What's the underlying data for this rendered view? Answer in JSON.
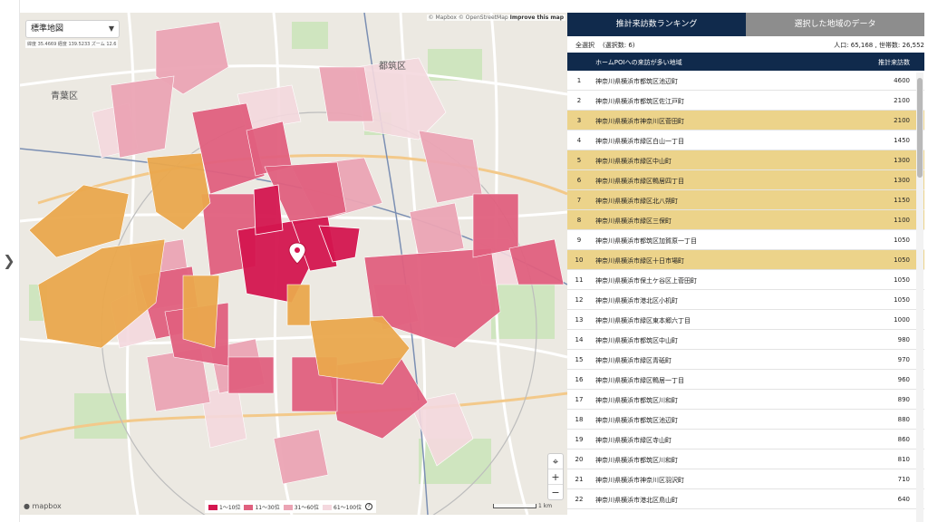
{
  "map": {
    "style_label": "標準地図",
    "coords": "緯度 35.4669  経度 139.5233  ズーム 12.6",
    "attribution": "© Mapbox © OpenStreetMap",
    "improve_label": "Improve this map",
    "logo": "mapbox",
    "scale": "1 km",
    "zoom_in": "+",
    "zoom_out": "−",
    "locate_icon": "crosshair-icon",
    "place_labels": [
      {
        "text": "都筑区",
        "id": "tsuzuki"
      },
      {
        "text": "青葉区",
        "id": "aoba"
      }
    ],
    "legend": [
      {
        "label": "1〜10位",
        "color": "#d4164f"
      },
      {
        "label": "11〜30位",
        "color": "#e0607e"
      },
      {
        "label": "31〜60位",
        "color": "#eba4b4"
      },
      {
        "label": "61〜100位",
        "color": "#f4d8de"
      }
    ],
    "legend_help": "?"
  },
  "panel": {
    "tabs": [
      {
        "label": "推計来訪数ランキング",
        "active": true
      },
      {
        "label": "選択した地域のデータ",
        "active": false
      }
    ],
    "select_all": "全選択",
    "selected_count": "(選択数: 6)",
    "population": "人口: 65,168 , 世帯数: 26,552",
    "col_area": "ホームPOIへの来訪が多い地域",
    "col_visits": "推計来訪数",
    "highlight_color": "#ecd38a",
    "rows": [
      {
        "rank": "1",
        "name": "神奈川県横浜市都筑区池辺町",
        "value": "4600",
        "hl": false
      },
      {
        "rank": "2",
        "name": "神奈川県横浜市都筑区佐江戸町",
        "value": "2100",
        "hl": false
      },
      {
        "rank": "3",
        "name": "神奈川県横浜市神奈川区菅田町",
        "value": "2100",
        "hl": true
      },
      {
        "rank": "4",
        "name": "神奈川県横浜市緑区白山一丁目",
        "value": "1450",
        "hl": false
      },
      {
        "rank": "5",
        "name": "神奈川県横浜市緑区中山町",
        "value": "1300",
        "hl": true
      },
      {
        "rank": "6",
        "name": "神奈川県横浜市緑区鴨居四丁目",
        "value": "1300",
        "hl": true
      },
      {
        "rank": "7",
        "name": "神奈川県横浜市緑区北八朔町",
        "value": "1150",
        "hl": true
      },
      {
        "rank": "8",
        "name": "神奈川県横浜市緑区三保町",
        "value": "1100",
        "hl": true
      },
      {
        "rank": "9",
        "name": "神奈川県横浜市都筑区加賀原一丁目",
        "value": "1050",
        "hl": false
      },
      {
        "rank": "10",
        "name": "神奈川県横浜市緑区十日市場町",
        "value": "1050",
        "hl": true
      },
      {
        "rank": "11",
        "name": "神奈川県横浜市保土ケ谷区上菅田町",
        "value": "1050",
        "hl": false
      },
      {
        "rank": "12",
        "name": "神奈川県横浜市港北区小机町",
        "value": "1050",
        "hl": false
      },
      {
        "rank": "13",
        "name": "神奈川県横浜市緑区東本郷六丁目",
        "value": "1000",
        "hl": false
      },
      {
        "rank": "14",
        "name": "神奈川県横浜市都筑区中山町",
        "value": "980",
        "hl": false
      },
      {
        "rank": "15",
        "name": "神奈川県横浜市緑区青砥町",
        "value": "970",
        "hl": false
      },
      {
        "rank": "16",
        "name": "神奈川県横浜市緑区鴨居一丁目",
        "value": "960",
        "hl": false
      },
      {
        "rank": "17",
        "name": "神奈川県横浜市都筑区川和町",
        "value": "890",
        "hl": false
      },
      {
        "rank": "18",
        "name": "神奈川県横浜市都筑区池辺町",
        "value": "880",
        "hl": false
      },
      {
        "rank": "19",
        "name": "神奈川県横浜市緑区寺山町",
        "value": "860",
        "hl": false
      },
      {
        "rank": "20",
        "name": "神奈川県横浜市都筑区川和町",
        "value": "810",
        "hl": false
      },
      {
        "rank": "21",
        "name": "神奈川県横浜市神奈川区羽沢町",
        "value": "710",
        "hl": false
      },
      {
        "rank": "22",
        "name": "神奈川県横浜市港北区鳥山町",
        "value": "640",
        "hl": false
      }
    ]
  }
}
